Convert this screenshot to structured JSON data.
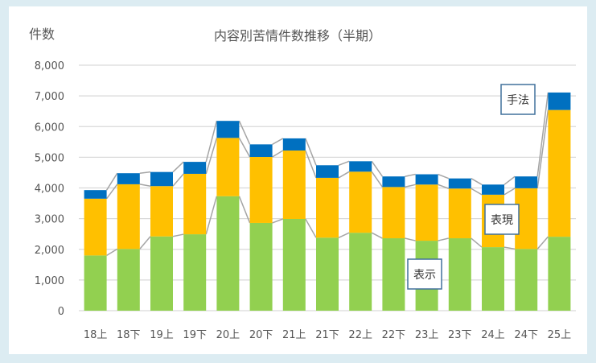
{
  "chart_data": {
    "type": "bar",
    "stacked": true,
    "title": "内容別苦情件数推移（半期）",
    "ylabel": "件数",
    "xlabel": "",
    "ylim": [
      0,
      8000
    ],
    "yticks": [
      "0",
      "1,000",
      "2,000",
      "3,000",
      "4,000",
      "5,000",
      "6,000",
      "7,000",
      "8,000"
    ],
    "ytick_values": [
      0,
      1000,
      2000,
      3000,
      4000,
      5000,
      6000,
      7000,
      8000
    ],
    "grid": true,
    "series_lines": true,
    "categories": [
      "18上",
      "18下",
      "19上",
      "19下",
      "20上",
      "20下",
      "21上",
      "21下",
      "22上",
      "22下",
      "23上",
      "23下",
      "24上",
      "24下",
      "25上"
    ],
    "series": [
      {
        "name": "表示",
        "color": "#92d050",
        "values": [
          1800,
          2010,
          2420,
          2490,
          3730,
          2860,
          2990,
          2380,
          2540,
          2360,
          2280,
          2360,
          2070,
          2010,
          2410
        ]
      },
      {
        "name": "表現",
        "color": "#ffc000",
        "values": [
          1850,
          2110,
          1640,
          1970,
          1900,
          2150,
          2230,
          1950,
          1990,
          1670,
          1830,
          1620,
          1710,
          1980,
          4130
        ]
      },
      {
        "name": "手法",
        "color": "#0070c0",
        "values": [
          280,
          360,
          460,
          390,
          555,
          410,
          395,
          410,
          340,
          345,
          335,
          330,
          330,
          385,
          570
        ]
      }
    ]
  }
}
